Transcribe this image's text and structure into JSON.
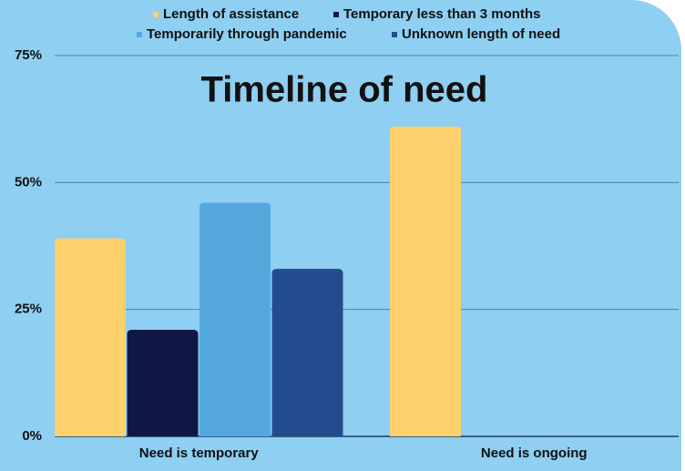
{
  "chart_data": {
    "type": "bar",
    "title": "Timeline of need",
    "categories": [
      "Need is temporary",
      "Need is ongoing"
    ],
    "series": [
      {
        "name": "Length of assistance",
        "color": "#fdd06b",
        "values": [
          39,
          61
        ]
      },
      {
        "name": "Temporary less than 3 months",
        "color": "#111745",
        "values": [
          21,
          null
        ]
      },
      {
        "name": "Temporarily through pandemic",
        "color": "#55a8de",
        "values": [
          46,
          null
        ]
      },
      {
        "name": "Unknown length of need",
        "color": "#224c8c",
        "values": [
          33,
          null
        ]
      }
    ],
    "ylim": [
      0,
      75
    ],
    "yticks": [
      {
        "value": 0,
        "label": "0%"
      },
      {
        "value": 25,
        "label": "25%"
      },
      {
        "value": 50,
        "label": "50%"
      },
      {
        "value": 75,
        "label": "75%"
      }
    ],
    "grid": true
  }
}
